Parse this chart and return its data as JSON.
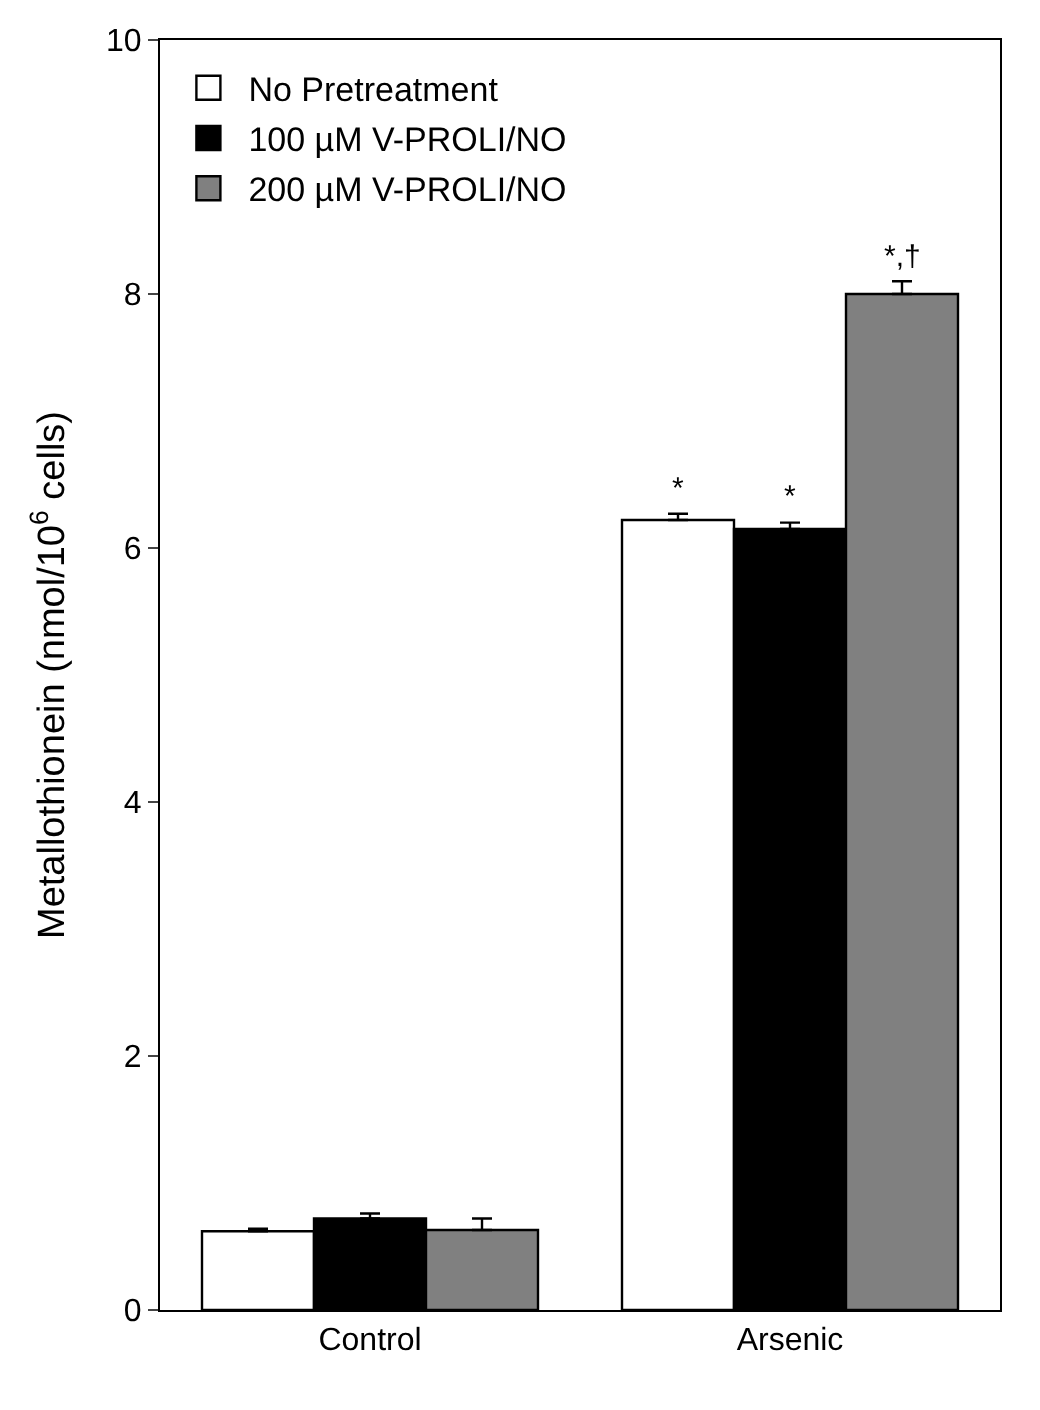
{
  "chart_data": {
    "type": "bar",
    "ylabel": "Metallothionein (nmol/10$^{6}$ cells)",
    "categories": [
      "Control",
      "Arsenic"
    ],
    "series": [
      {
        "name": "No Pretreatment",
        "color": "#ffffff",
        "values": [
          0.62,
          6.22
        ],
        "errors": [
          0.02,
          0.05
        ],
        "value_labels": [
          null,
          "*"
        ]
      },
      {
        "name": "100 µM V-PROLI/NO",
        "color": "#000000",
        "values": [
          0.72,
          6.15
        ],
        "errors": [
          0.04,
          0.05
        ],
        "value_labels": [
          null,
          "*"
        ]
      },
      {
        "name": "200 µM V-PROLI/NO",
        "color": "#808080",
        "values": [
          0.63,
          8.0
        ],
        "errors": [
          0.09,
          0.1
        ],
        "value_labels": [
          null,
          "*,†"
        ]
      }
    ],
    "ylim": [
      0,
      10
    ],
    "yticks": [
      0,
      2,
      4,
      6,
      8,
      10
    ],
    "legend": "top left"
  }
}
